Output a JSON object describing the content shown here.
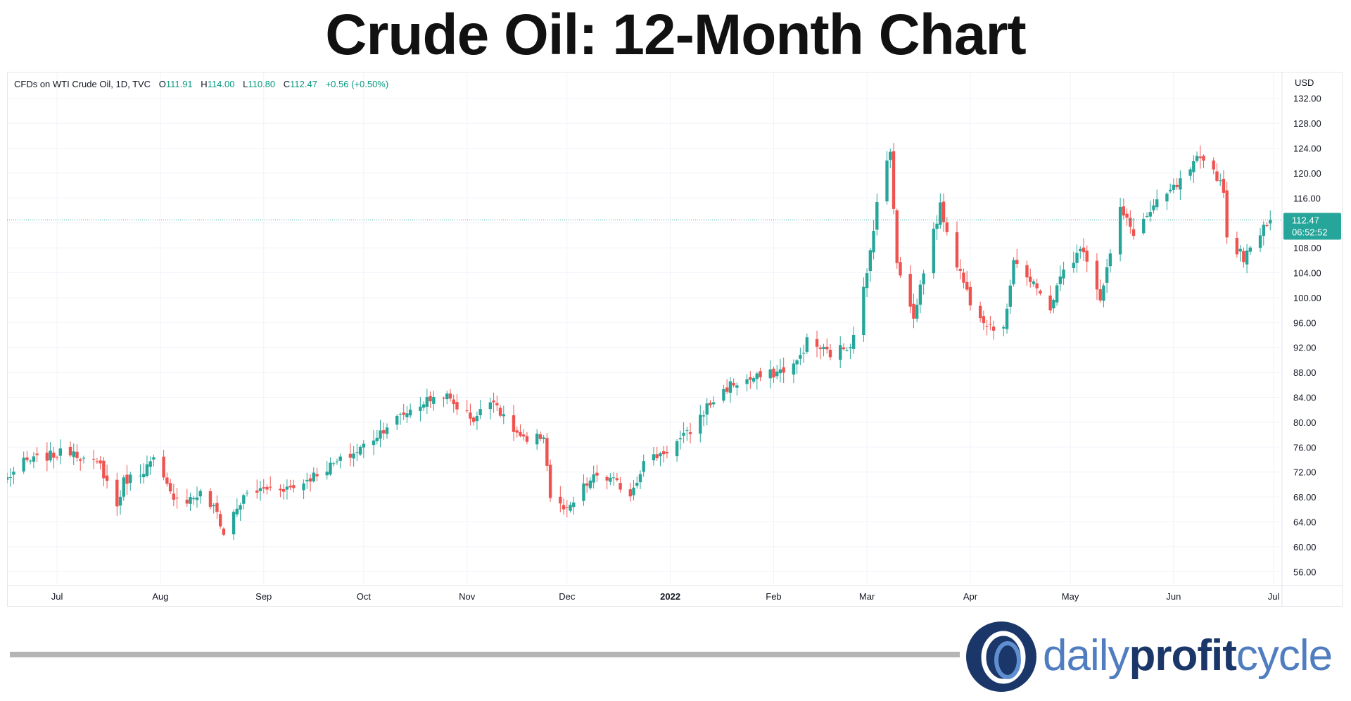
{
  "title": "Crude Oil: 12-Month Chart",
  "legend": {
    "symbol": "CFDs on WTI Crude Oil, 1D, TVC",
    "open_label": "O",
    "open": "111.91",
    "high_label": "H",
    "high": "114.00",
    "low_label": "L",
    "low": "110.80",
    "close_label": "C",
    "close": "112.47",
    "change": "+0.56 (+0.50%)"
  },
  "brand": {
    "part1": "daily",
    "part2": "profit",
    "part3": "cycle"
  },
  "colors": {
    "up": "#26a69a",
    "down": "#ef5350",
    "grid": "#f0f3fa",
    "brand_dark": "#1b3668",
    "brand_light": "#4f7dbf"
  },
  "chart_data": {
    "type": "candlestick",
    "currency": "USD",
    "ylim": [
      54,
      134
    ],
    "y_ticks": [
      "56.00",
      "60.00",
      "64.00",
      "68.00",
      "72.00",
      "76.00",
      "80.00",
      "84.00",
      "88.00",
      "92.00",
      "96.00",
      "100.00",
      "104.00",
      "108.00",
      "112.00",
      "116.00",
      "120.00",
      "124.00",
      "128.00",
      "132.00"
    ],
    "x_ticks": [
      {
        "label": "Jul",
        "date": "2021-07-01"
      },
      {
        "label": "Aug",
        "date": "2021-08-01"
      },
      {
        "label": "Sep",
        "date": "2021-09-01"
      },
      {
        "label": "Oct",
        "date": "2021-10-01"
      },
      {
        "label": "Nov",
        "date": "2021-11-01"
      },
      {
        "label": "Dec",
        "date": "2021-12-01"
      },
      {
        "label": "2022",
        "date": "2022-01-01",
        "bold": true
      },
      {
        "label": "Feb",
        "date": "2022-02-01"
      },
      {
        "label": "Mar",
        "date": "2022-03-01"
      },
      {
        "label": "Apr",
        "date": "2022-04-01"
      },
      {
        "label": "May",
        "date": "2022-05-01"
      },
      {
        "label": "Jun",
        "date": "2022-06-01"
      },
      {
        "label": "Jul",
        "date": "2022-07-01"
      }
    ],
    "x_range": [
      "2021-06-16",
      "2022-07-01"
    ],
    "last_price": {
      "value": "112.47",
      "countdown": "06:52:52"
    },
    "closes": [
      [
        "2021-06-16",
        71.0
      ],
      [
        "2021-06-21",
        73.5
      ],
      [
        "2021-06-28",
        74.5
      ],
      [
        "2021-07-06",
        75.5
      ],
      [
        "2021-07-09",
        74.0
      ],
      [
        "2021-07-14",
        73.0
      ],
      [
        "2021-07-19",
        66.5
      ],
      [
        "2021-07-21",
        70.5
      ],
      [
        "2021-07-26",
        72.0
      ],
      [
        "2021-07-30",
        73.8
      ],
      [
        "2021-08-04",
        68.5
      ],
      [
        "2021-08-09",
        67.5
      ],
      [
        "2021-08-13",
        68.5
      ],
      [
        "2021-08-18",
        65.5
      ],
      [
        "2021-08-20",
        62.0
      ],
      [
        "2021-08-23",
        65.5
      ],
      [
        "2021-08-27",
        68.5
      ],
      [
        "2021-09-03",
        69.5
      ],
      [
        "2021-09-10",
        69.5
      ],
      [
        "2021-09-17",
        71.8
      ],
      [
        "2021-09-24",
        73.8
      ],
      [
        "2021-09-28",
        75.0
      ],
      [
        "2021-10-04",
        77.5
      ],
      [
        "2021-10-08",
        79.5
      ],
      [
        "2021-10-15",
        82.0
      ],
      [
        "2021-10-20",
        83.5
      ],
      [
        "2021-10-25",
        84.5
      ],
      [
        "2021-10-28",
        83.0
      ],
      [
        "2021-11-03",
        80.5
      ],
      [
        "2021-11-09",
        84.0
      ],
      [
        "2021-11-12",
        80.5
      ],
      [
        "2021-11-19",
        76.5
      ],
      [
        "2021-11-24",
        78.0
      ],
      [
        "2021-11-26",
        68.0
      ],
      [
        "2021-12-01",
        65.5
      ],
      [
        "2021-12-06",
        69.5
      ],
      [
        "2021-12-10",
        71.5
      ],
      [
        "2021-12-15",
        70.5
      ],
      [
        "2021-12-20",
        68.5
      ],
      [
        "2021-12-24",
        73.5
      ],
      [
        "2021-12-31",
        75.5
      ],
      [
        "2022-01-07",
        78.5
      ],
      [
        "2022-01-12",
        82.5
      ],
      [
        "2022-01-19",
        86.0
      ],
      [
        "2022-01-26",
        87.0
      ],
      [
        "2022-02-02",
        88.0
      ],
      [
        "2022-02-08",
        89.5
      ],
      [
        "2022-02-11",
        93.0
      ],
      [
        "2022-02-18",
        91.0
      ],
      [
        "2022-02-24",
        92.5
      ],
      [
        "2022-03-01",
        103.5
      ],
      [
        "2022-03-04",
        115.5
      ],
      [
        "2022-03-08",
        123.5
      ],
      [
        "2022-03-10",
        106.0
      ],
      [
        "2022-03-15",
        96.5
      ],
      [
        "2022-03-18",
        104.5
      ],
      [
        "2022-03-23",
        114.5
      ],
      [
        "2022-03-28",
        105.5
      ],
      [
        "2022-04-01",
        99.5
      ],
      [
        "2022-04-06",
        96.0
      ],
      [
        "2022-04-11",
        94.5
      ],
      [
        "2022-04-14",
        106.5
      ],
      [
        "2022-04-19",
        102.5
      ],
      [
        "2022-04-25",
        98.5
      ],
      [
        "2022-04-29",
        104.5
      ],
      [
        "2022-05-05",
        108.0
      ],
      [
        "2022-05-10",
        100.0
      ],
      [
        "2022-05-16",
        114.0
      ],
      [
        "2022-05-20",
        110.5
      ],
      [
        "2022-05-27",
        115.0
      ],
      [
        "2022-06-03",
        118.5
      ],
      [
        "2022-06-08",
        122.0
      ],
      [
        "2022-06-13",
        120.5
      ],
      [
        "2022-06-16",
        117.5
      ],
      [
        "2022-06-17",
        109.5
      ],
      [
        "2022-06-22",
        106.5
      ],
      [
        "2022-06-24",
        107.5
      ],
      [
        "2022-06-28",
        111.8
      ],
      [
        "2022-06-30",
        112.47
      ]
    ]
  }
}
